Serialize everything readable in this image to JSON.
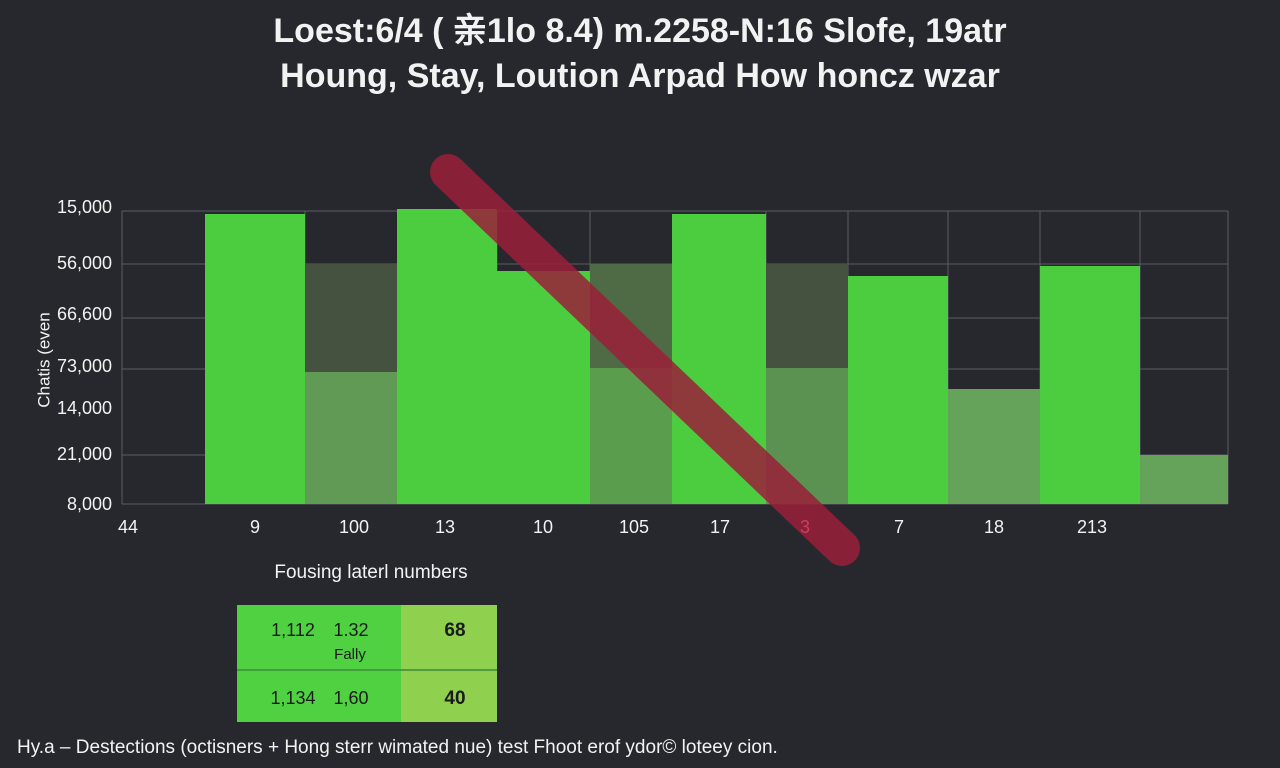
{
  "header": {
    "lines": [
      "Loest:6/4 ( 亲1lo 8.4) m.2258-N:16 Slofe, 19atr",
      "Houng, Stay, Loution Arpad How honcz wzar"
    ]
  },
  "axis": {
    "y_title": "Chatis (even",
    "y_labels": [
      "15,000",
      "56,000",
      "66,600",
      "73,000",
      "14,000",
      "21,000",
      "8,000"
    ],
    "x_labels": [
      "44",
      "9",
      "100",
      "13",
      "10",
      "105",
      "17",
      "3",
      "7",
      "18",
      "213"
    ]
  },
  "caption": "Fousing laterl numbers",
  "table": {
    "rows": [
      [
        "1,112",
        "1.32",
        "Fally",
        "68"
      ],
      [
        "1,134",
        "1,60",
        "40"
      ]
    ]
  },
  "footer": "Hy.a – Destections (octisners + Hong sterr wimated nue) test Fhoot erof ydor© loteey cion."
}
